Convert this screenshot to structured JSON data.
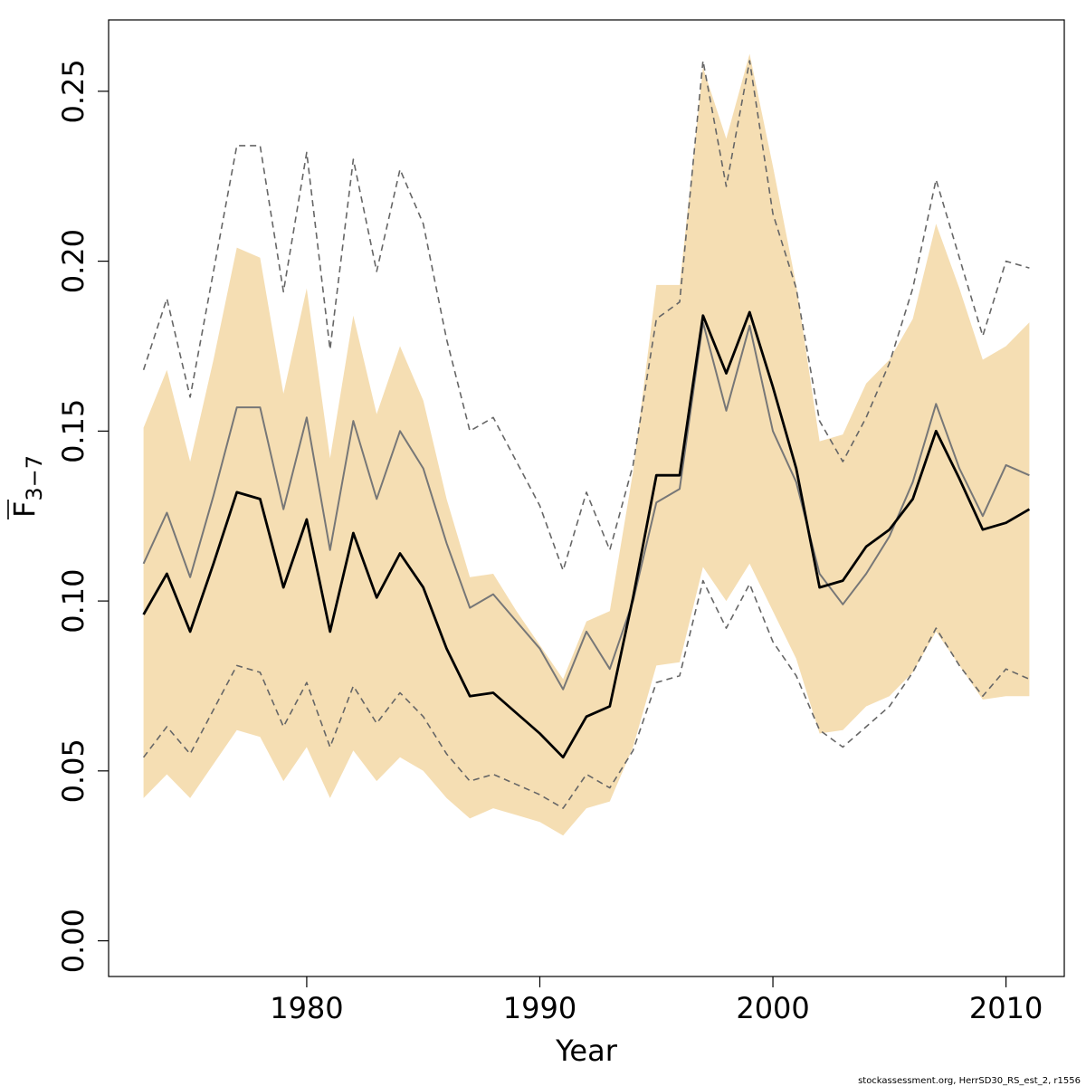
{
  "chart_data": {
    "type": "line",
    "xlabel": "Year",
    "ylabel": {
      "base": "F",
      "subscript": "3−7"
    },
    "xlim": [
      1971.5,
      2012.5
    ],
    "ylim": [
      -0.0105,
      0.271
    ],
    "xticks": [
      "1980",
      "1990",
      "2000",
      "2010"
    ],
    "yticks": [
      "0.00",
      "0.05",
      "0.10",
      "0.15",
      "0.20",
      "0.25"
    ],
    "grid": false,
    "legend": "none",
    "x": [
      1973,
      1974,
      1975,
      1976,
      1977,
      1978,
      1979,
      1980,
      1981,
      1982,
      1983,
      1984,
      1985,
      1986,
      1987,
      1988,
      1989,
      1990,
      1991,
      1992,
      1993,
      1994,
      1995,
      1996,
      1997,
      1998,
      1999,
      2000,
      2001,
      2002,
      2003,
      2004,
      2005,
      2006,
      2007,
      2008,
      2009,
      2010,
      2011
    ],
    "series": [
      {
        "role": "band_upper",
        "color": "#f5deb3",
        "values": [
          0.151,
          0.168,
          0.141,
          0.171,
          0.204,
          0.201,
          0.161,
          0.192,
          0.142,
          0.184,
          0.155,
          0.175,
          0.159,
          0.13,
          0.107,
          0.108,
          0.097,
          0.087,
          0.077,
          0.094,
          0.097,
          0.138,
          0.193,
          0.193,
          0.257,
          0.236,
          0.261,
          0.228,
          0.193,
          0.147,
          0.149,
          0.164,
          0.171,
          0.183,
          0.211,
          0.192,
          0.171,
          0.175,
          0.182
        ]
      },
      {
        "role": "band_lower",
        "color": "#f5deb3",
        "values": [
          0.042,
          0.049,
          0.042,
          0.052,
          0.062,
          0.06,
          0.047,
          0.057,
          0.042,
          0.056,
          0.047,
          0.054,
          0.05,
          0.042,
          0.036,
          0.039,
          0.037,
          0.035,
          0.031,
          0.039,
          0.041,
          0.057,
          0.081,
          0.082,
          0.11,
          0.1,
          0.111,
          0.097,
          0.083,
          0.061,
          0.062,
          0.069,
          0.072,
          0.079,
          0.091,
          0.081,
          0.071,
          0.072,
          0.072
        ]
      },
      {
        "role": "dashed_upper",
        "color": "#666666",
        "values": [
          0.168,
          0.189,
          0.16,
          0.197,
          0.234,
          0.234,
          0.191,
          0.232,
          0.174,
          0.23,
          0.197,
          0.227,
          0.211,
          0.177,
          0.15,
          0.154,
          0.141,
          0.128,
          0.109,
          0.132,
          0.115,
          0.14,
          0.183,
          0.188,
          0.259,
          0.222,
          0.259,
          0.214,
          0.192,
          0.153,
          0.141,
          0.154,
          0.17,
          0.192,
          0.224,
          0.201,
          0.178,
          0.2,
          0.198
        ]
      },
      {
        "role": "dashed_lower",
        "color": "#666666",
        "values": [
          0.054,
          0.063,
          0.055,
          0.068,
          0.081,
          0.079,
          0.063,
          0.076,
          0.057,
          0.075,
          0.064,
          0.073,
          0.066,
          0.055,
          0.047,
          0.049,
          0.046,
          0.043,
          0.039,
          0.049,
          0.045,
          0.056,
          0.076,
          0.078,
          0.106,
          0.092,
          0.105,
          0.088,
          0.078,
          0.062,
          0.057,
          0.063,
          0.069,
          0.079,
          0.092,
          0.081,
          0.072,
          0.08,
          0.077
        ]
      },
      {
        "role": "grey_line",
        "color": "#777777",
        "values": [
          0.111,
          0.126,
          0.107,
          0.131,
          0.157,
          0.157,
          0.127,
          0.154,
          0.115,
          0.153,
          0.13,
          0.15,
          0.139,
          0.117,
          0.098,
          0.102,
          0.094,
          0.086,
          0.074,
          0.091,
          0.08,
          0.1,
          0.129,
          0.133,
          0.182,
          0.156,
          0.181,
          0.15,
          0.135,
          0.108,
          0.099,
          0.108,
          0.119,
          0.135,
          0.158,
          0.139,
          0.125,
          0.14,
          0.137
        ]
      },
      {
        "role": "main_line",
        "color": "#000000",
        "values": [
          0.096,
          0.108,
          0.091,
          0.111,
          0.132,
          0.13,
          0.104,
          0.124,
          0.091,
          0.12,
          0.101,
          0.114,
          0.104,
          0.086,
          0.072,
          0.073,
          0.067,
          0.061,
          0.054,
          0.066,
          0.069,
          0.101,
          0.137,
          0.137,
          0.184,
          0.167,
          0.185,
          0.163,
          0.139,
          0.104,
          0.106,
          0.116,
          0.121,
          0.13,
          0.15,
          0.136,
          0.121,
          0.123,
          0.127
        ]
      }
    ]
  },
  "footer": {
    "note": "stockassessment.org, HerrSD30_RS_est_2, r1556"
  }
}
